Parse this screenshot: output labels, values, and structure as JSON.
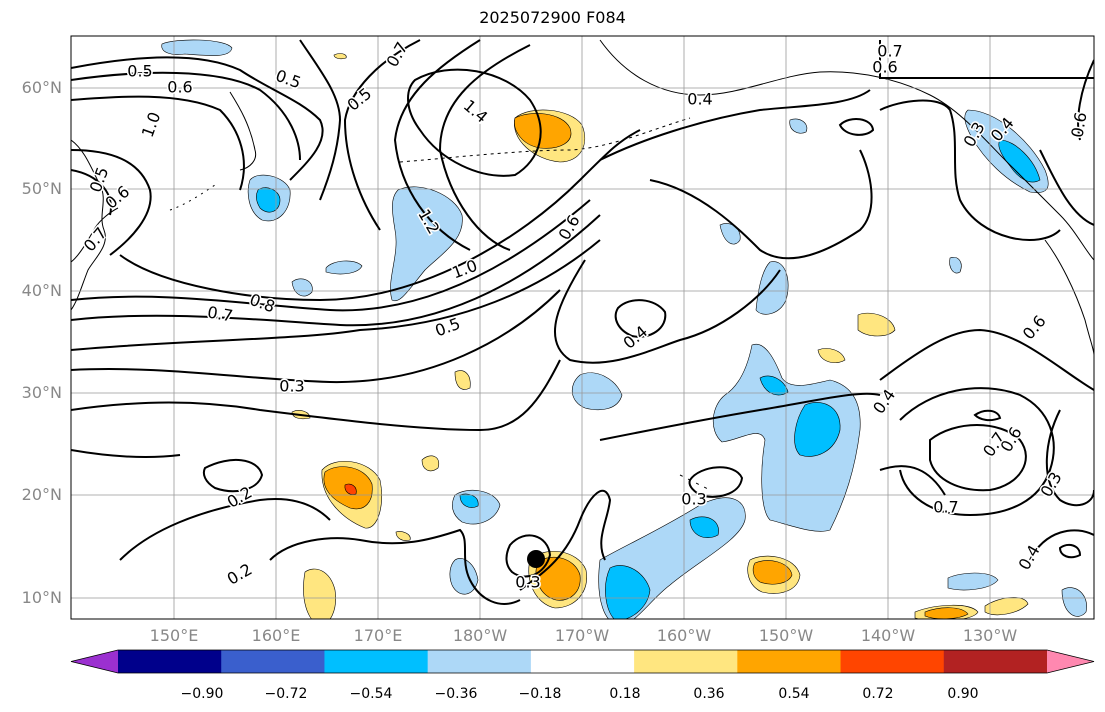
{
  "title": "2025072900 F084",
  "lat_labels": [
    "60°N",
    "50°N",
    "40°N",
    "30°N",
    "20°N",
    "10°N"
  ],
  "lon_labels": [
    "150°E",
    "160°E",
    "170°E",
    "180°W",
    "170°W",
    "160°W",
    "150°W",
    "140°W",
    "130°W"
  ],
  "colorbar": {
    "colors": [
      "#9b30d0",
      "#00008b",
      "#3a5fcd",
      "#00bfff",
      "#add8f7",
      "#ffffff",
      "#ffe680",
      "#ffa500",
      "#ff4500",
      "#b22222",
      "#ff88b0"
    ],
    "labels": [
      "−0.90",
      "−0.72",
      "−0.54",
      "−0.36",
      "−0.18",
      "0.18",
      "0.36",
      "0.54",
      "0.72",
      "0.90"
    ]
  },
  "contour_labels": [
    "0.5",
    "0.6",
    "1.0",
    "0.5",
    "0.6",
    "0.7",
    "0.5",
    "0.5",
    "0.7",
    "1.4",
    "1.2",
    "1.0",
    "0.8",
    "0.7",
    "0.5",
    "0.6",
    "0.4",
    "0.3",
    "0.2",
    "0.2",
    "0.3",
    "0.3",
    "0.4",
    "0.4",
    "0.7",
    "0.6",
    "0.6",
    "0.7",
    "0.3",
    "0.3",
    "0.4",
    "0.7",
    "0.6",
    "0.4",
    "0.6"
  ],
  "marker": "storm-center"
}
